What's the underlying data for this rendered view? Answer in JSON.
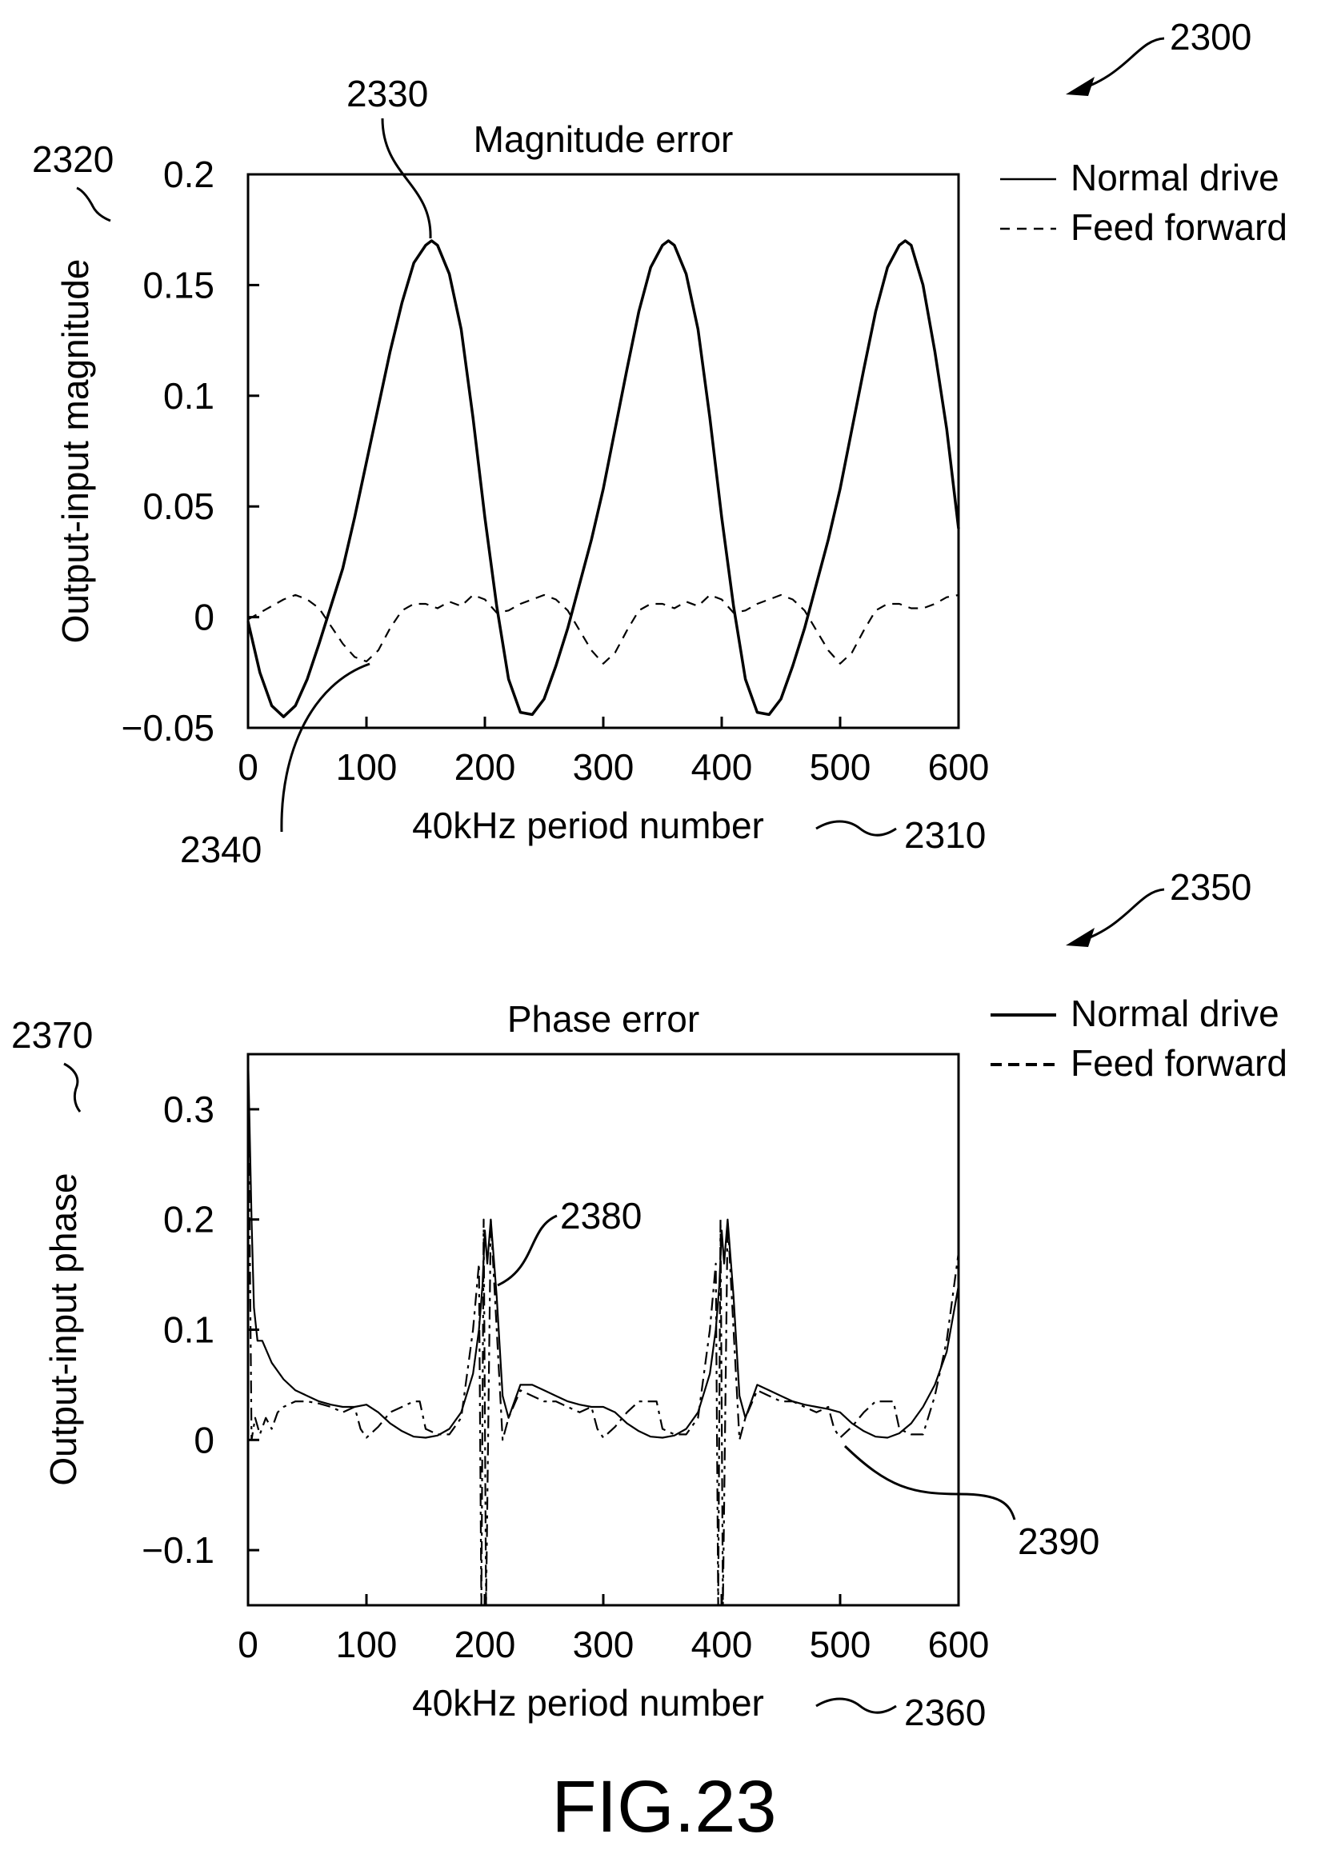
{
  "figure": {
    "label": "FIG.23",
    "ref_numbers": {
      "r2300": "2300",
      "r2330": "2330",
      "r2320": "2320",
      "r2340": "2340",
      "r2310": "2310",
      "r2350": "2350",
      "r2370": "2370",
      "r2380": "2380",
      "r2390": "2390",
      "r2360": "2360"
    }
  },
  "chart_data": [
    {
      "type": "line",
      "title": "Magnitude error",
      "xlabel": "40kHz period number",
      "ylabel": "Output-input magnitude",
      "xlim": [
        0,
        600
      ],
      "ylim": [
        -0.05,
        0.2
      ],
      "xticks": [
        "0",
        "100",
        "200",
        "300",
        "400",
        "500",
        "600"
      ],
      "yticks": [
        "-0.05",
        "0",
        "0.05",
        "0.1",
        "0.15",
        "0.2"
      ],
      "legend_position": "right",
      "grid": false,
      "series": [
        {
          "name": "Normal drive",
          "style": "solid",
          "x": [
            0,
            10,
            20,
            30,
            40,
            50,
            60,
            70,
            80,
            90,
            100,
            110,
            120,
            130,
            140,
            150,
            155,
            160,
            170,
            180,
            190,
            200,
            210,
            220,
            230,
            240,
            250,
            260,
            270,
            280,
            290,
            300,
            310,
            320,
            330,
            340,
            350,
            355,
            360,
            370,
            380,
            390,
            400,
            410,
            420,
            430,
            440,
            450,
            460,
            470,
            480,
            490,
            500,
            510,
            520,
            530,
            540,
            550,
            555,
            560,
            570,
            580,
            590,
            600
          ],
          "values": [
            -0.002,
            -0.025,
            -0.04,
            -0.045,
            -0.04,
            -0.028,
            -0.012,
            0.005,
            0.022,
            0.045,
            0.07,
            0.095,
            0.12,
            0.142,
            0.16,
            0.168,
            0.17,
            0.168,
            0.155,
            0.13,
            0.09,
            0.045,
            0.005,
            -0.028,
            -0.043,
            -0.044,
            -0.037,
            -0.022,
            -0.005,
            0.015,
            0.035,
            0.058,
            0.085,
            0.112,
            0.138,
            0.158,
            0.168,
            0.17,
            0.168,
            0.155,
            0.13,
            0.09,
            0.045,
            0.005,
            -0.028,
            -0.043,
            -0.044,
            -0.037,
            -0.022,
            -0.005,
            0.015,
            0.035,
            0.058,
            0.085,
            0.112,
            0.138,
            0.158,
            0.168,
            0.17,
            0.168,
            0.15,
            0.12,
            0.085,
            0.04
          ]
        },
        {
          "name": "Feed forward",
          "style": "dashed",
          "x": [
            0,
            10,
            20,
            30,
            40,
            50,
            60,
            70,
            80,
            90,
            100,
            110,
            120,
            130,
            140,
            150,
            160,
            170,
            180,
            190,
            200,
            210,
            220,
            230,
            240,
            250,
            260,
            270,
            280,
            290,
            300,
            310,
            320,
            330,
            340,
            350,
            360,
            370,
            380,
            390,
            400,
            410,
            420,
            430,
            440,
            450,
            460,
            470,
            480,
            490,
            500,
            510,
            520,
            530,
            540,
            550,
            560,
            570,
            580,
            590,
            600
          ],
          "values": [
            -0.001,
            0.002,
            0.005,
            0.008,
            0.01,
            0.008,
            0.004,
            -0.004,
            -0.012,
            -0.018,
            -0.02,
            -0.015,
            -0.005,
            0.003,
            0.006,
            0.006,
            0.004,
            0.007,
            0.005,
            0.01,
            0.008,
            0.002,
            0.003,
            0.006,
            0.008,
            0.01,
            0.008,
            0.003,
            -0.006,
            -0.015,
            -0.021,
            -0.016,
            -0.006,
            0.003,
            0.006,
            0.006,
            0.004,
            0.007,
            0.005,
            0.01,
            0.008,
            0.002,
            0.003,
            0.006,
            0.008,
            0.01,
            0.008,
            0.003,
            -0.006,
            -0.015,
            -0.021,
            -0.016,
            -0.006,
            0.003,
            0.006,
            0.006,
            0.004,
            0.004,
            0.006,
            0.009,
            0.01
          ]
        }
      ]
    },
    {
      "type": "line",
      "title": "Phase error",
      "xlabel": "40kHz period number",
      "ylabel": "Output-input phase",
      "xlim": [
        0,
        600
      ],
      "ylim": [
        -0.15,
        0.35
      ],
      "xticks": [
        "0",
        "100",
        "200",
        "300",
        "400",
        "500",
        "600"
      ],
      "yticks": [
        "-0.1",
        "0",
        "0.1",
        "0.2",
        "0.3"
      ],
      "legend_position": "right",
      "grid": false,
      "series": [
        {
          "name": "Normal drive",
          "style": "solid",
          "x": [
            0,
            3,
            5,
            8,
            12,
            20,
            30,
            40,
            50,
            60,
            70,
            80,
            90,
            100,
            110,
            120,
            130,
            140,
            150,
            160,
            170,
            180,
            190,
            195,
            198,
            200,
            202,
            205,
            210,
            215,
            220,
            230,
            240,
            250,
            260,
            270,
            280,
            290,
            300,
            310,
            320,
            330,
            340,
            350,
            360,
            370,
            380,
            390,
            395,
            398,
            400,
            402,
            405,
            410,
            415,
            420,
            430,
            440,
            450,
            460,
            470,
            480,
            490,
            500,
            510,
            520,
            530,
            540,
            550,
            560,
            570,
            580,
            590,
            600
          ],
          "values": [
            0.35,
            0.2,
            0.12,
            0.09,
            0.09,
            0.07,
            0.055,
            0.045,
            0.04,
            0.035,
            0.032,
            0.03,
            0.03,
            0.032,
            0.025,
            0.015,
            0.008,
            0.003,
            0.002,
            0.004,
            0.01,
            0.025,
            0.06,
            0.1,
            0.14,
            0.19,
            0.16,
            0.2,
            0.13,
            0.04,
            0.02,
            0.05,
            0.05,
            0.045,
            0.04,
            0.035,
            0.032,
            0.03,
            0.03,
            0.025,
            0.015,
            0.008,
            0.003,
            0.002,
            0.004,
            0.01,
            0.025,
            0.06,
            0.1,
            0.14,
            0.19,
            0.16,
            0.2,
            0.13,
            0.04,
            0.02,
            0.05,
            0.045,
            0.04,
            0.035,
            0.032,
            0.03,
            0.028,
            0.025,
            0.015,
            0.008,
            0.003,
            0.002,
            0.006,
            0.015,
            0.03,
            0.05,
            0.08,
            0.14
          ]
        },
        {
          "name": "Feed forward",
          "style": "dash-dot",
          "x": [
            0,
            3,
            6,
            10,
            15,
            20,
            25,
            30,
            40,
            50,
            60,
            70,
            80,
            90,
            95,
            100,
            110,
            120,
            130,
            140,
            145,
            150,
            160,
            170,
            180,
            190,
            195,
            197,
            199,
            201,
            205,
            210,
            215,
            220,
            230,
            240,
            250,
            260,
            270,
            280,
            290,
            295,
            300,
            310,
            320,
            330,
            340,
            345,
            350,
            360,
            370,
            380,
            390,
            395,
            397,
            399,
            401,
            405,
            410,
            415,
            420,
            430,
            440,
            450,
            460,
            470,
            480,
            490,
            495,
            500,
            510,
            520,
            530,
            540,
            545,
            550,
            560,
            570,
            580,
            590,
            600
          ],
          "values": [
            0.35,
            0.0,
            0.02,
            0.005,
            0.02,
            0.01,
            0.025,
            0.03,
            0.035,
            0.035,
            0.033,
            0.03,
            0.025,
            0.03,
            0.01,
            0.002,
            0.012,
            0.025,
            0.03,
            0.035,
            0.035,
            0.01,
            0.005,
            0.005,
            0.02,
            0.1,
            0.16,
            -0.15,
            0.2,
            -0.15,
            0.2,
            0.1,
            0.0,
            0.02,
            0.045,
            0.04,
            0.035,
            0.035,
            0.03,
            0.025,
            0.03,
            0.01,
            0.002,
            0.012,
            0.025,
            0.035,
            0.035,
            0.035,
            0.01,
            0.005,
            0.005,
            0.02,
            0.1,
            0.16,
            -0.15,
            0.2,
            -0.15,
            0.2,
            0.1,
            0.0,
            0.02,
            0.045,
            0.04,
            0.035,
            0.035,
            0.03,
            0.025,
            0.03,
            0.01,
            0.002,
            0.012,
            0.025,
            0.035,
            0.035,
            0.035,
            0.01,
            0.005,
            0.005,
            0.04,
            0.09,
            0.17
          ]
        }
      ]
    }
  ]
}
